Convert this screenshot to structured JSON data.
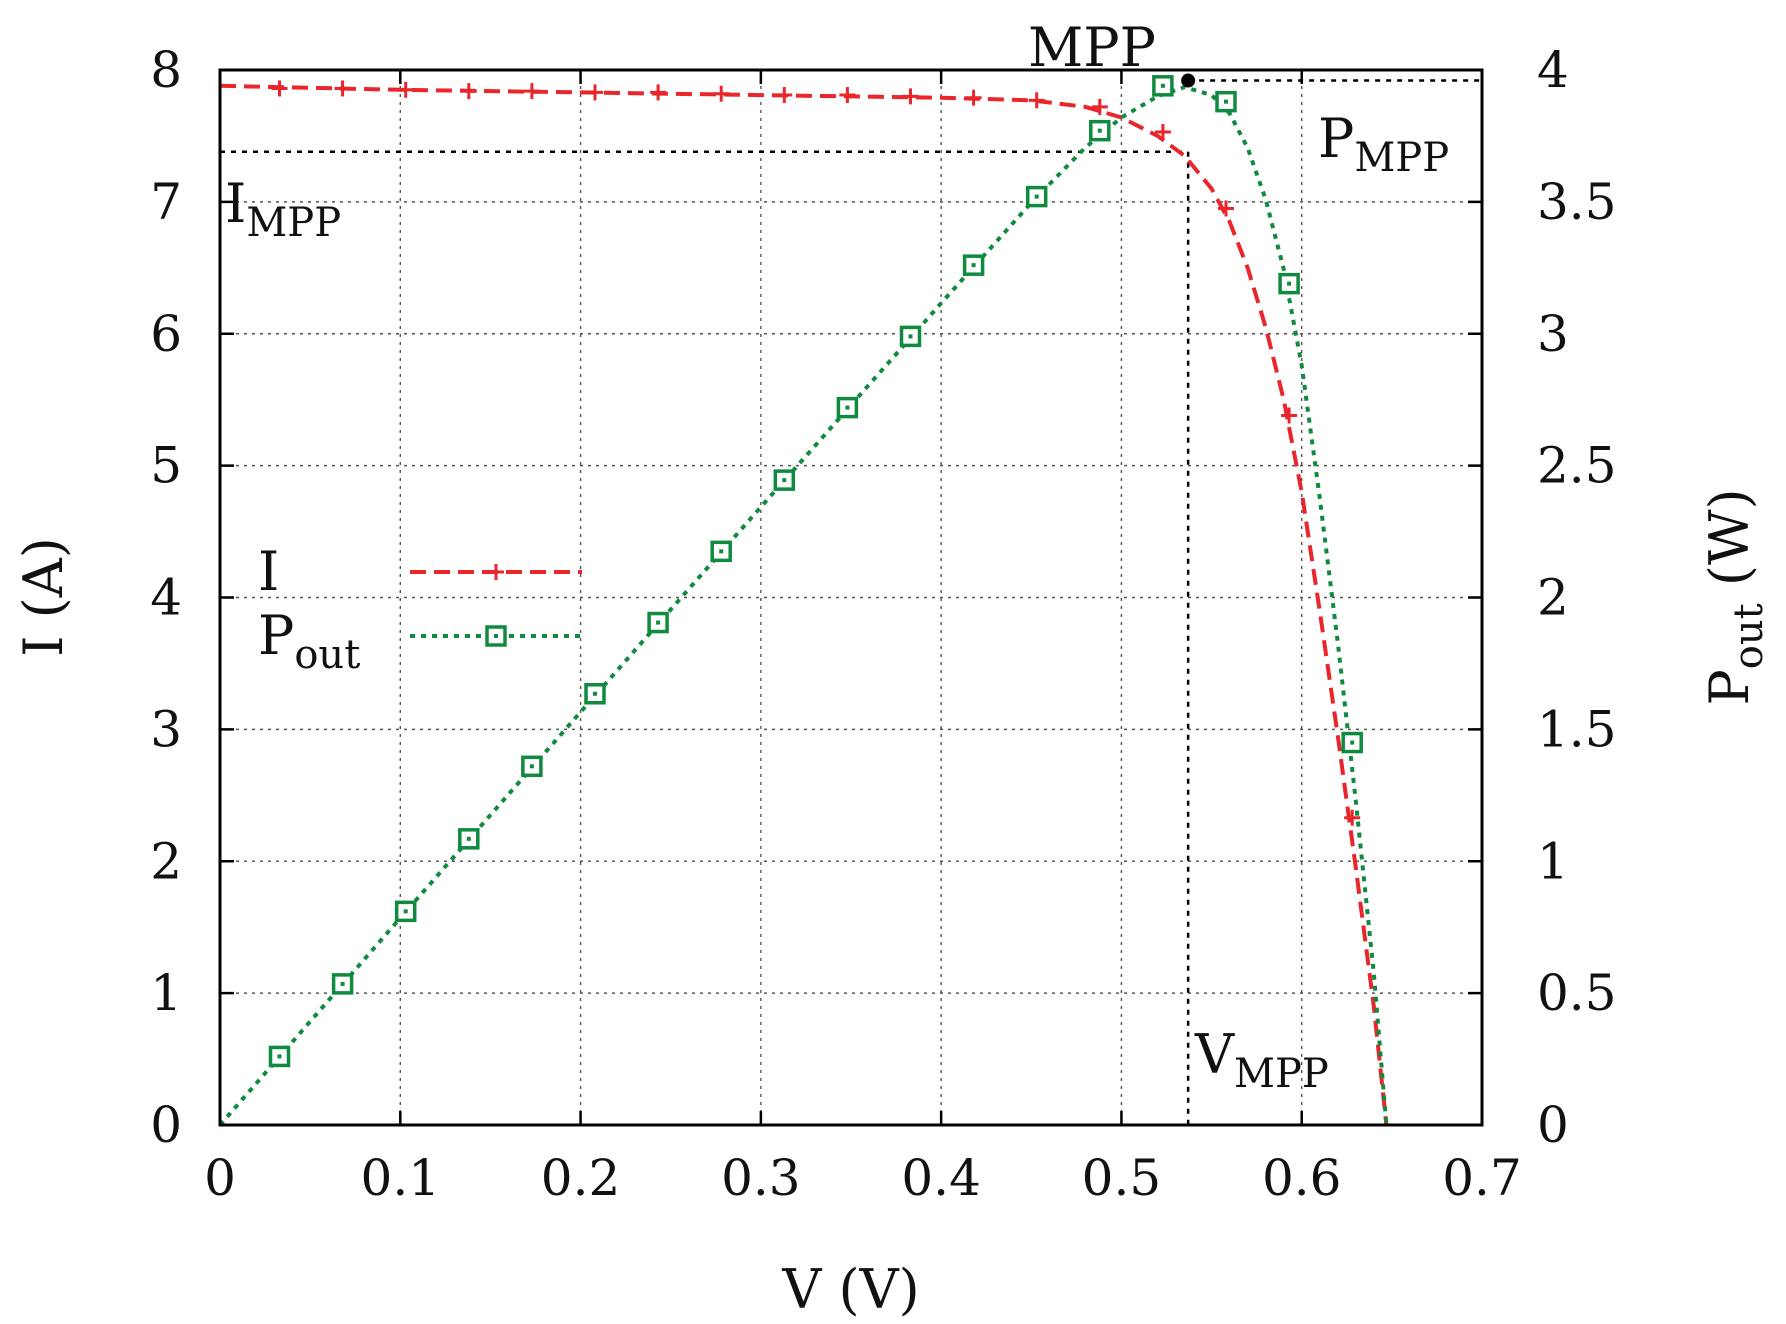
{
  "chart_data": {
    "type": "line",
    "xlabel": "V (V)",
    "ylabel": "I (A)",
    "y2label_main": "P",
    "y2label_sub": "out",
    "y2label_tail": " (W)",
    "xlim": [
      0,
      0.7
    ],
    "ylim": [
      0,
      8
    ],
    "y2lim": [
      0,
      4
    ],
    "x_ticks": [
      "0",
      "0.1",
      "0.2",
      "0.3",
      "0.4",
      "0.5",
      "0.6",
      "0.7"
    ],
    "y_ticks": [
      "0",
      "1",
      "2",
      "3",
      "4",
      "5",
      "6",
      "7",
      "8"
    ],
    "y2_ticks": [
      "0",
      "0.5",
      "1",
      "1.5",
      "2",
      "2.5",
      "3",
      "3.5",
      "4"
    ],
    "grid": true,
    "legend_position": "middle-left",
    "series": [
      {
        "name": "I",
        "name_sub": "",
        "axis": "left",
        "color": "#e8262b",
        "dash": "dashed",
        "marker": "plus",
        "curve": [
          [
            0,
            7.88
          ],
          [
            0.1,
            7.85
          ],
          [
            0.2,
            7.83
          ],
          [
            0.3,
            7.81
          ],
          [
            0.4,
            7.79
          ],
          [
            0.45,
            7.77
          ],
          [
            0.48,
            7.72
          ],
          [
            0.5,
            7.64
          ],
          [
            0.52,
            7.5
          ],
          [
            0.535,
            7.35
          ],
          [
            0.55,
            7.1
          ],
          [
            0.56,
            6.85
          ],
          [
            0.57,
            6.5
          ],
          [
            0.58,
            6.05
          ],
          [
            0.59,
            5.5
          ],
          [
            0.6,
            4.8
          ],
          [
            0.61,
            3.9
          ],
          [
            0.62,
            2.95
          ],
          [
            0.63,
            1.95
          ],
          [
            0.64,
            0.9
          ],
          [
            0.647,
            0
          ]
        ],
        "points": [
          [
            0.033,
            7.86
          ],
          [
            0.068,
            7.86
          ],
          [
            0.103,
            7.85
          ],
          [
            0.138,
            7.84
          ],
          [
            0.173,
            7.84
          ],
          [
            0.208,
            7.83
          ],
          [
            0.243,
            7.83
          ],
          [
            0.278,
            7.82
          ],
          [
            0.313,
            7.81
          ],
          [
            0.348,
            7.81
          ],
          [
            0.383,
            7.8
          ],
          [
            0.418,
            7.79
          ],
          [
            0.453,
            7.77
          ],
          [
            0.488,
            7.72
          ],
          [
            0.523,
            7.53
          ],
          [
            0.558,
            6.95
          ],
          [
            0.593,
            5.38
          ],
          [
            0.628,
            2.33
          ]
        ]
      },
      {
        "name": "P",
        "name_sub": "out",
        "axis": "right",
        "color": "#0f8a3f",
        "dash": "dotted",
        "marker": "square",
        "curve": [
          [
            0,
            0
          ],
          [
            0.1,
            0.785
          ],
          [
            0.2,
            1.566
          ],
          [
            0.3,
            2.343
          ],
          [
            0.4,
            3.116
          ],
          [
            0.45,
            3.497
          ],
          [
            0.48,
            3.706
          ],
          [
            0.5,
            3.82
          ],
          [
            0.52,
            3.9
          ],
          [
            0.535,
            3.935
          ],
          [
            0.55,
            3.905
          ],
          [
            0.56,
            3.836
          ],
          [
            0.57,
            3.705
          ],
          [
            0.58,
            3.509
          ],
          [
            0.59,
            3.245
          ],
          [
            0.6,
            2.88
          ],
          [
            0.61,
            2.379
          ],
          [
            0.62,
            1.829
          ],
          [
            0.63,
            1.229
          ],
          [
            0.64,
            0.576
          ],
          [
            0.647,
            0
          ]
        ],
        "points": [
          [
            0.033,
            0.26
          ],
          [
            0.068,
            0.535
          ],
          [
            0.103,
            0.81
          ],
          [
            0.138,
            1.085
          ],
          [
            0.173,
            1.36
          ],
          [
            0.208,
            1.635
          ],
          [
            0.243,
            1.905
          ],
          [
            0.278,
            2.175
          ],
          [
            0.313,
            2.445
          ],
          [
            0.348,
            2.72
          ],
          [
            0.383,
            2.99
          ],
          [
            0.418,
            3.26
          ],
          [
            0.453,
            3.52
          ],
          [
            0.488,
            3.77
          ],
          [
            0.523,
            3.94
          ],
          [
            0.558,
            3.88
          ],
          [
            0.593,
            3.19
          ],
          [
            0.628,
            1.45
          ]
        ]
      }
    ],
    "mpp": {
      "v": 0.537,
      "i": 7.38,
      "p": 3.96,
      "label": "MPP",
      "i_label_main": "I",
      "i_label_sub": "MPP",
      "v_label_main": "V",
      "v_label_sub": "MPP",
      "p_label_main": "P",
      "p_label_sub": "MPP"
    }
  }
}
